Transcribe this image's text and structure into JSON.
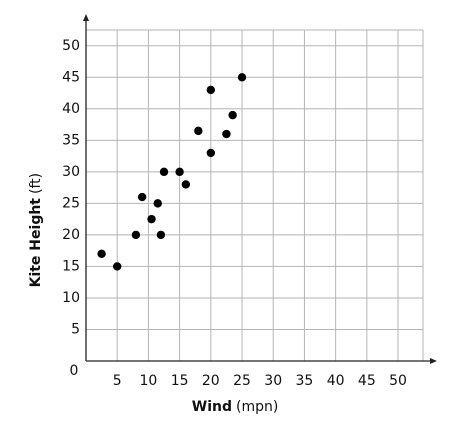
{
  "chart_data": {
    "type": "scatter",
    "x_label": "Wind",
    "x_unit": "(mpn)",
    "y_label": "Kite Height",
    "y_unit": "(ft)",
    "x": [
      2.5,
      5,
      8,
      9,
      10.5,
      11.5,
      12.5,
      12,
      15,
      16,
      18,
      20,
      20,
      22.5,
      23.5,
      25
    ],
    "values": [
      17,
      15,
      20,
      26,
      22.5,
      25,
      30,
      20,
      30,
      28,
      36.5,
      33,
      43,
      36,
      39,
      45
    ],
    "color": "#000000",
    "xlim": [
      0,
      54
    ],
    "ylim": [
      0,
      52.5
    ],
    "xticks": [
      5,
      10,
      15,
      20,
      25,
      30,
      35,
      40,
      45,
      50
    ],
    "yticks": [
      0,
      5,
      10,
      15,
      20,
      25,
      30,
      35,
      40,
      45,
      50
    ],
    "grid": true
  }
}
